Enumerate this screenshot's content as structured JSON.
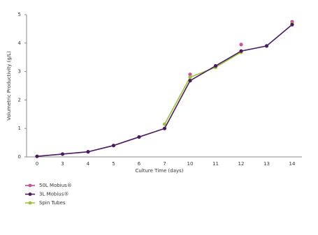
{
  "chart_data": {
    "type": "line",
    "x_label": "Culture Time (days)",
    "y_label": "Volumetric Productivity (g/L)",
    "categories": [
      "0",
      "3",
      "4",
      "5",
      "6",
      "7",
      "10",
      "11",
      "12",
      "13",
      "14"
    ],
    "ylim": [
      0,
      5
    ],
    "yticks": [
      0,
      1,
      2,
      3,
      4,
      5
    ],
    "grid": false,
    "legend": "bottom-left",
    "series": [
      {
        "name": "50L Mobius®",
        "color": "#cc4d9a",
        "values": [
          null,
          null,
          null,
          null,
          null,
          null,
          2.9,
          null,
          3.95,
          null,
          4.75
        ]
      },
      {
        "name": "3L Mobius®",
        "color": "#4b1a5e",
        "values": [
          0.02,
          0.1,
          0.18,
          0.4,
          0.7,
          1.0,
          2.68,
          3.2,
          3.72,
          3.9,
          4.65
        ]
      },
      {
        "name": "Spin Tubes",
        "color": "#9bc23c",
        "values": [
          null,
          null,
          null,
          null,
          null,
          1.15,
          2.8,
          3.15,
          3.68,
          null,
          4.68
        ]
      }
    ]
  }
}
